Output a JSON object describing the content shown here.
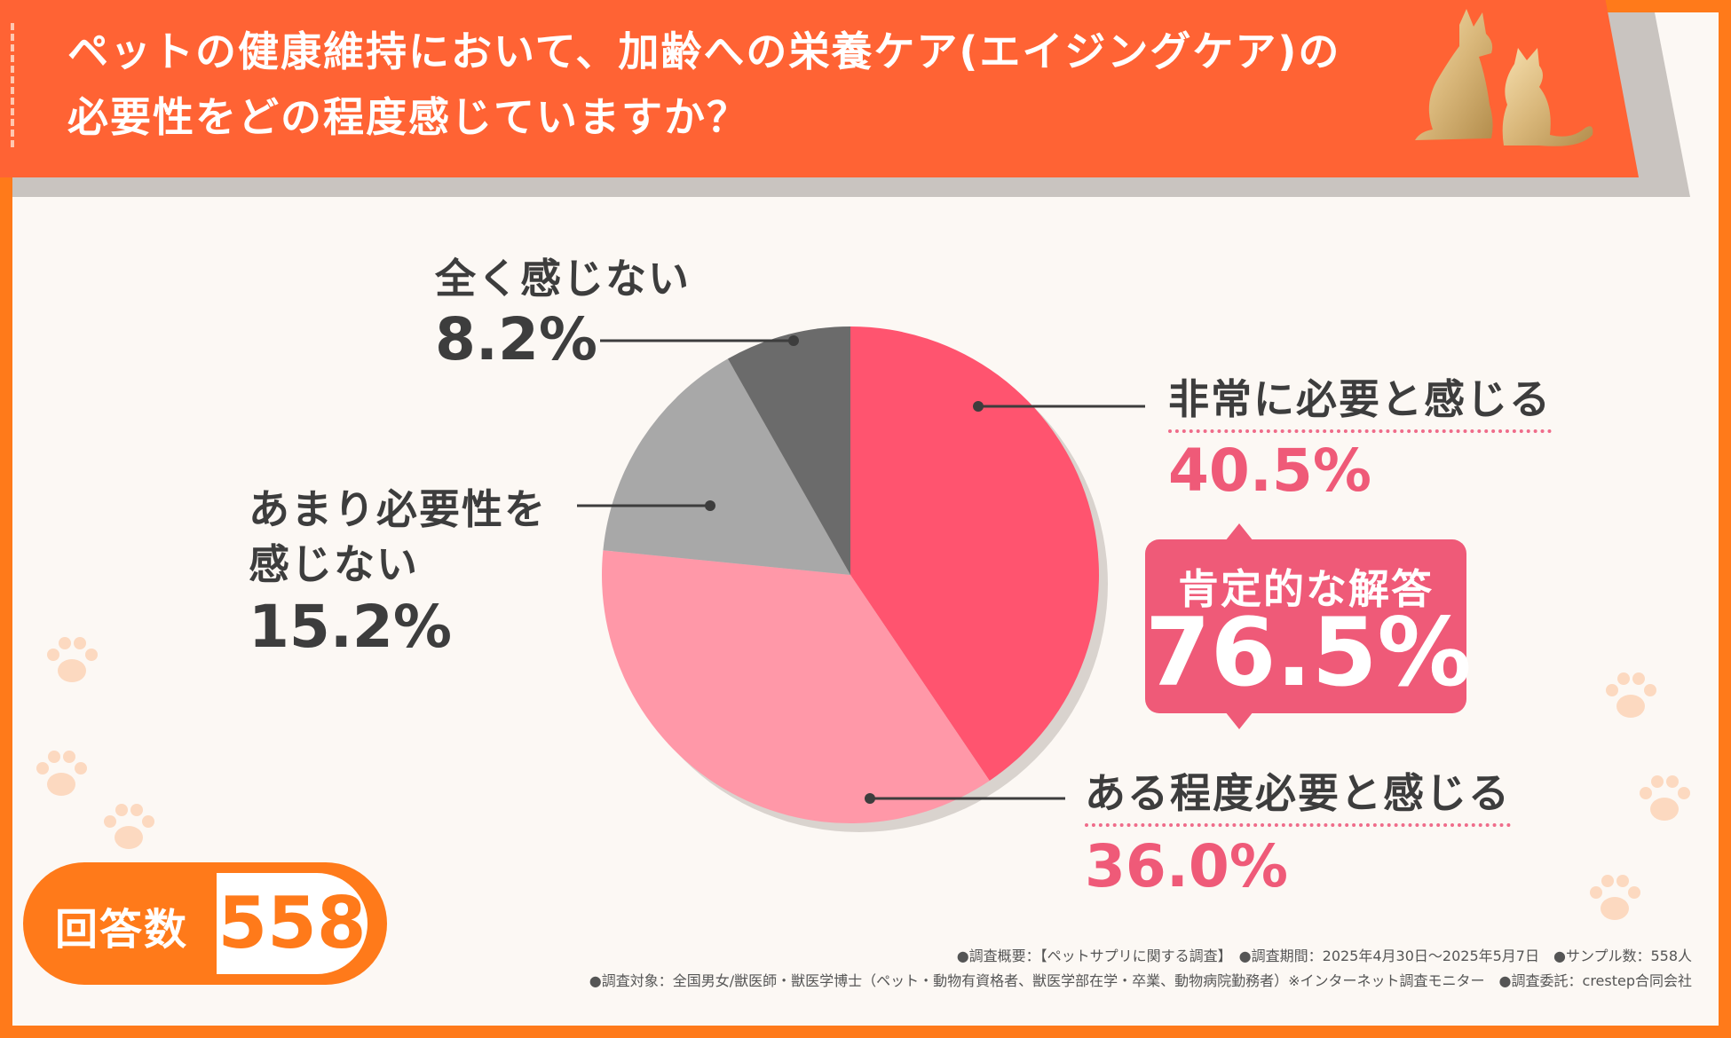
{
  "header": {
    "title_line1": "ペットの健康維持において、加齢への栄養ケア(エイジングケア)の",
    "title_line2": "必要性をどの程度感じていますか？"
  },
  "colors": {
    "frame": "#ff7a1a",
    "banner": "#ff6334",
    "pink_dark": "#ef5a78",
    "pink_light": "#ff98a8",
    "gray_light": "#a8a8a8",
    "gray_dark": "#6b6b6b",
    "text_dark": "#3d3d3d"
  },
  "chart_data": {
    "type": "pie",
    "title": "ペットの健康維持において、加齢への栄養ケア(エイジングケア)の必要性をどの程度感じていますか？",
    "slices": [
      {
        "label": "非常に必要と感じる",
        "value": 40.5,
        "display": "40.5%",
        "color": "#ff546f"
      },
      {
        "label": "ある程度必要と感じる",
        "value": 36.0,
        "display": "36.0%",
        "color": "#ff98a8"
      },
      {
        "label": "あまり必要性を感じない",
        "value": 15.2,
        "display": "15.2%",
        "color": "#a8a8a8"
      },
      {
        "label": "全く感じない",
        "value": 8.2,
        "display": "8.2%",
        "color": "#6b6b6b"
      }
    ],
    "start_angle_deg": 0,
    "direction": "clockwise"
  },
  "labels": {
    "s1_name": "非常に必要と感じる",
    "s1_pct": "40.5%",
    "s2_name": "ある程度必要と感じる",
    "s2_pct": "36.0%",
    "s3_name_line1": "あまり必要性を",
    "s3_name_line2": "感じない",
    "s3_pct": "15.2%",
    "s4_name": "全く感じない",
    "s4_pct": "8.2%"
  },
  "badge": {
    "label": "肯定的な解答",
    "value": "76.5%"
  },
  "respondents": {
    "label": "回答数",
    "value": "558"
  },
  "footer": {
    "line1": "●調査概要：【ペットサプリに関する調査】　●調査期間：2025年4月30日～2025年5月7日　●サンプル数：558人",
    "line2": "●調査対象：全国男女/獣医師・獣医学博士（ペット・動物有資格者、獣医学部在学・卒業、動物病院勤務者）※インターネット調査モニター　●調査委託：crestep合同会社"
  }
}
